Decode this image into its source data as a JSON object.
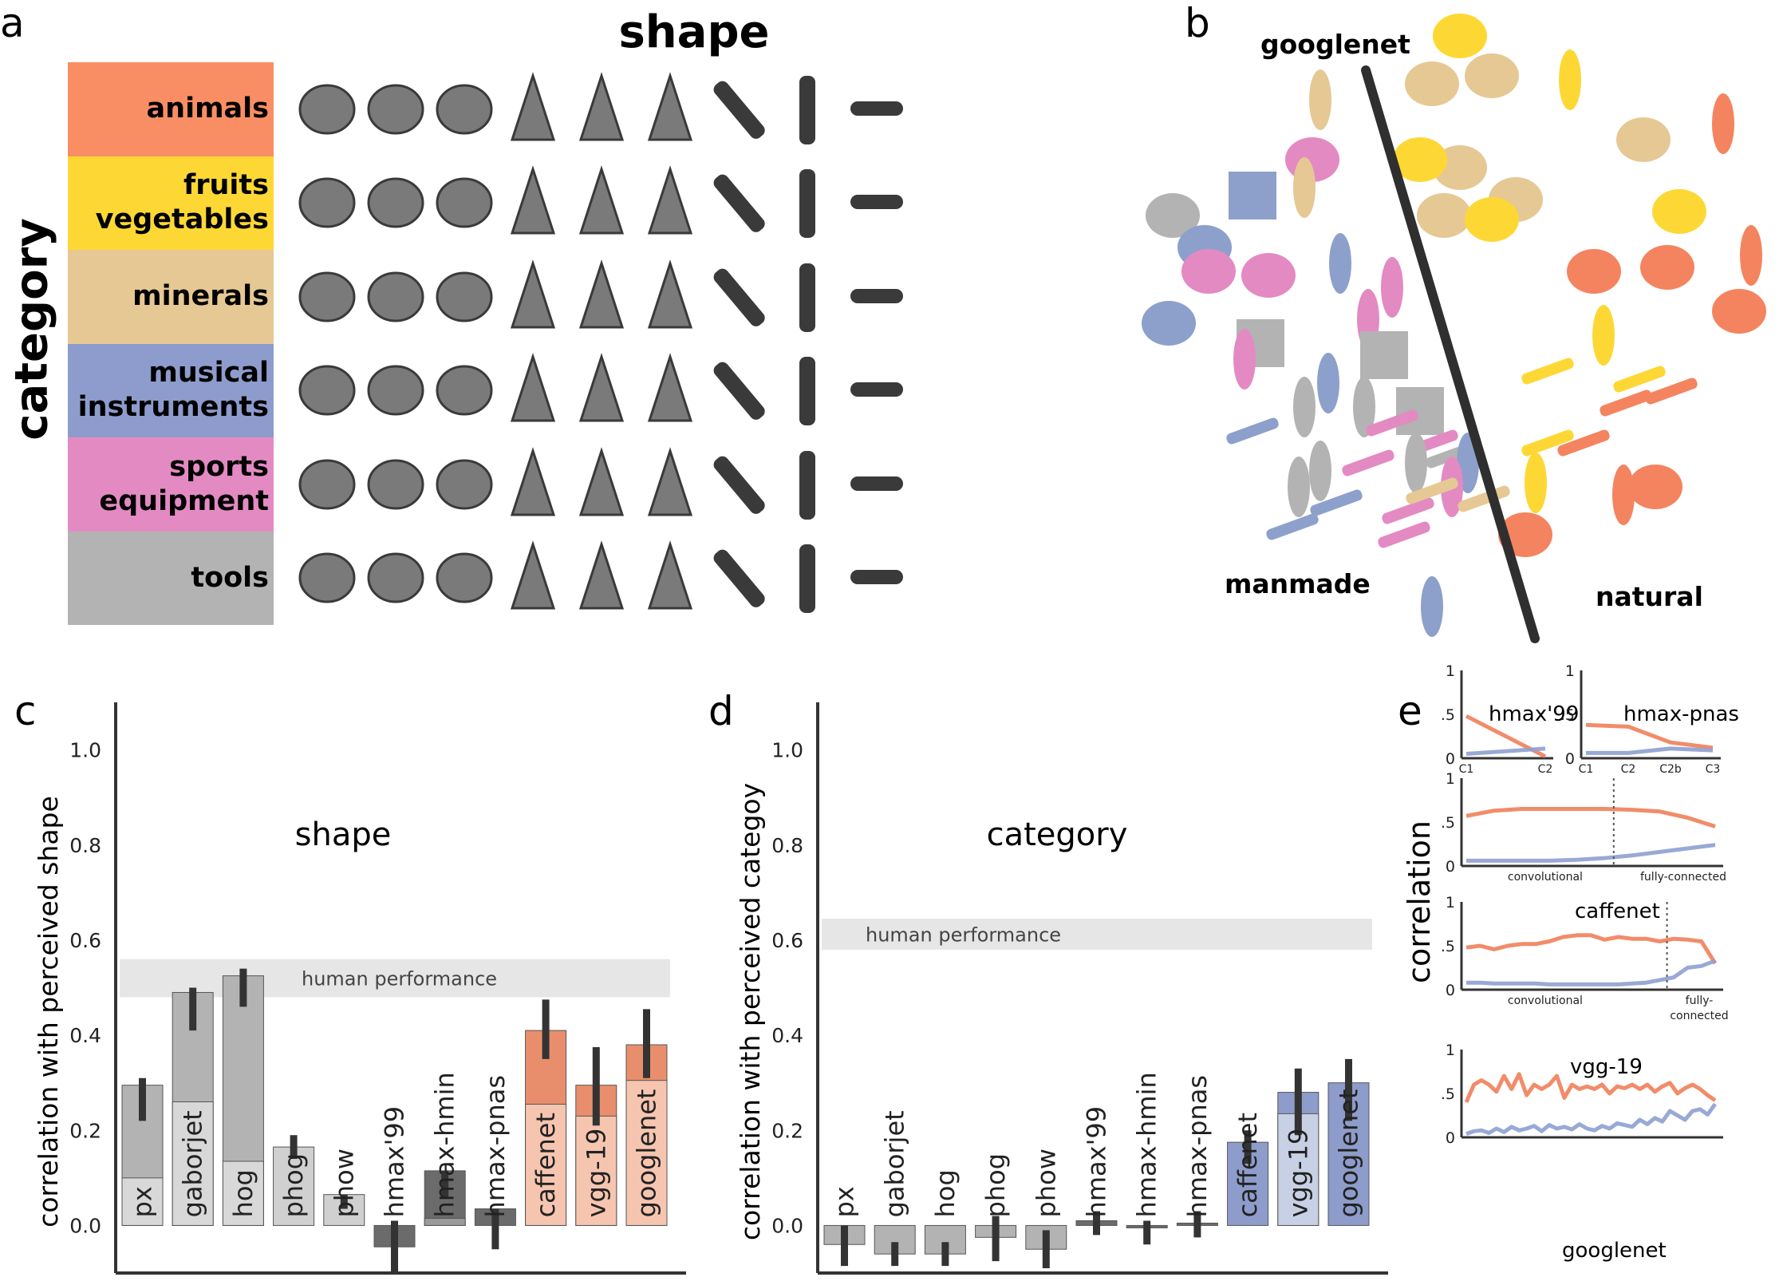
{
  "panels": {
    "a": "a",
    "b": "b",
    "c": "c",
    "d": "d",
    "e": "e"
  },
  "grid": {
    "title": "shape",
    "ylabel": "category",
    "categories": [
      {
        "lines": [
          "animals"
        ],
        "color": "#f98e64"
      },
      {
        "lines": [
          "fruits",
          "vegetables"
        ],
        "color": "#fdd835"
      },
      {
        "lines": [
          "minerals"
        ],
        "color": "#e6c894"
      },
      {
        "lines": [
          "musical",
          "instruments"
        ],
        "color": "#8d9ccc"
      },
      {
        "lines": [
          "sports",
          "equipment"
        ],
        "color": "#e38ac3"
      },
      {
        "lines": [
          "tools"
        ],
        "color": "#b3b3b3"
      }
    ],
    "object_icons": [
      "butterfly-icon",
      "snake-icon",
      "fish-icon",
      "goose-icon",
      "rabbit-icon",
      "owl-icon",
      "squid-icon",
      "centipede-icon",
      "slug-icon"
    ]
  },
  "panel_b": {
    "model_label": "googlenet",
    "left_label": "manmade",
    "right_label": "natural"
  },
  "colors": {
    "natural": "#f4845f",
    "manmade": "#8da0cb",
    "gray_dark": "#9e9e9e",
    "gray_light": "#dcdcdc",
    "err": "#333333"
  },
  "chart_data": [
    {
      "id": "c",
      "type": "bar",
      "title": "shape",
      "ylabel": "correlation with perceived shape",
      "ylim": [
        -0.1,
        1.1
      ],
      "yticks": [
        "0.0",
        "0.2",
        "0.4",
        "0.6",
        "0.8",
        "1.0"
      ],
      "human_performance": {
        "label": "human performance",
        "low": 0.48,
        "high": 0.56
      },
      "categories": [
        "px",
        "gaborjet",
        "hog",
        "phog",
        "phow",
        "hmax'99",
        "hmax-hmin",
        "hmax-pnas",
        "caffenet",
        "vgg-19",
        "googlenet"
      ],
      "values": [
        0.295,
        0.49,
        0.525,
        0.165,
        0.065,
        -0.045,
        0.115,
        0.035,
        0.41,
        0.295,
        0.38
      ],
      "inner_values": [
        0.1,
        0.26,
        0.135,
        0.165,
        0.065,
        -0.045,
        0.015,
        0.035,
        0.255,
        0.23,
        0.305
      ],
      "error_low": [
        0.22,
        0.41,
        0.46,
        0.14,
        0.035,
        -0.1,
        0.06,
        -0.05,
        0.35,
        0.21,
        0.31
      ],
      "error_high": [
        0.31,
        0.5,
        0.54,
        0.19,
        0.065,
        0.01,
        0.115,
        0.035,
        0.475,
        0.375,
        0.455
      ],
      "groups": [
        "gray",
        "gray",
        "gray",
        "lightgray",
        "lightgray",
        "darkgray",
        "darkgray",
        "darkgray",
        "orange",
        "orange",
        "orange"
      ]
    },
    {
      "id": "d",
      "type": "bar",
      "title": "category",
      "ylabel": "correlation with perceived categoy",
      "ylim": [
        -0.1,
        1.1
      ],
      "yticks": [
        "0.0",
        "0.2",
        "0.4",
        "0.6",
        "0.8",
        "1.0"
      ],
      "human_performance": {
        "label": "human performance",
        "low": 0.58,
        "high": 0.645
      },
      "categories": [
        "px",
        "gaborjet",
        "hog",
        "phog",
        "phow",
        "hmax'99",
        "hmax-hmin",
        "hmax-pnas",
        "caffenet",
        "vgg-19",
        "googlenet"
      ],
      "values": [
        -0.04,
        -0.06,
        -0.06,
        -0.025,
        -0.05,
        0.01,
        0.0,
        0.005,
        0.175,
        0.28,
        0.3
      ],
      "inner_values": [
        -0.04,
        -0.06,
        -0.06,
        -0.025,
        -0.05,
        0.01,
        0.0,
        0.005,
        0.175,
        0.235,
        0.3
      ],
      "error_low": [
        -0.085,
        -0.085,
        -0.085,
        -0.075,
        -0.09,
        -0.02,
        -0.04,
        -0.025,
        0.13,
        0.19,
        0.22
      ],
      "error_high": [
        0.0,
        -0.035,
        -0.035,
        0.02,
        -0.01,
        0.03,
        0.01,
        0.03,
        0.2,
        0.33,
        0.35
      ],
      "groups": [
        "gray",
        "gray",
        "gray",
        "gray",
        "gray",
        "darkgray",
        "darkgray",
        "darkgray",
        "blue",
        "blue",
        "blue"
      ]
    },
    {
      "id": "e1",
      "type": "line",
      "title": "hmax'99",
      "x": [
        "C1",
        "C2"
      ],
      "ylim": [
        0,
        1
      ],
      "yticks": [
        "0",
        ".5",
        "1"
      ],
      "series": [
        {
          "name": "shape",
          "values": [
            0.48,
            0.02
          ]
        },
        {
          "name": "category",
          "values": [
            0.05,
            0.11
          ]
        }
      ]
    },
    {
      "id": "e2",
      "type": "line",
      "title": "hmax-pnas",
      "x": [
        "C1",
        "C2",
        "C2b",
        "C3"
      ],
      "ylim": [
        0,
        1
      ],
      "yticks": [
        "0",
        ".5",
        "1"
      ],
      "series": [
        {
          "name": "shape",
          "values": [
            0.38,
            0.36,
            0.18,
            0.12
          ]
        },
        {
          "name": "category",
          "values": [
            0.06,
            0.06,
            0.11,
            0.09
          ]
        }
      ]
    },
    {
      "id": "e3",
      "type": "line",
      "title": "caffenet",
      "xlabel_left": "convolutional",
      "xlabel_right": "fully-connected",
      "ylim": [
        0,
        1
      ],
      "yticks": [
        "0",
        ".5",
        "1"
      ],
      "series": [
        {
          "name": "shape",
          "values": [
            0.57,
            0.63,
            0.65,
            0.65,
            0.65,
            0.65,
            0.64,
            0.62,
            0.55,
            0.45
          ]
        },
        {
          "name": "category",
          "values": [
            0.06,
            0.06,
            0.06,
            0.06,
            0.07,
            0.09,
            0.12,
            0.16,
            0.2,
            0.24
          ]
        }
      ]
    },
    {
      "id": "e4",
      "type": "line",
      "title": "vgg-19",
      "xlabel_left": "convolutional",
      "xlabel_right": "fully-\nconnected",
      "ylim": [
        0,
        1
      ],
      "yticks": [
        "0",
        ".5",
        "1"
      ],
      "series": [
        {
          "name": "shape",
          "values": [
            0.48,
            0.5,
            0.46,
            0.5,
            0.52,
            0.52,
            0.55,
            0.6,
            0.62,
            0.62,
            0.57,
            0.6,
            0.58,
            0.58,
            0.55,
            0.58,
            0.57,
            0.55,
            0.3
          ]
        },
        {
          "name": "category",
          "values": [
            0.08,
            0.08,
            0.07,
            0.07,
            0.07,
            0.07,
            0.06,
            0.06,
            0.06,
            0.06,
            0.06,
            0.06,
            0.07,
            0.08,
            0.11,
            0.14,
            0.25,
            0.27,
            0.33
          ]
        }
      ]
    },
    {
      "id": "e5",
      "type": "line",
      "title": "googlenet",
      "ylim": [
        0,
        1
      ],
      "yticks": [
        "0",
        ".5",
        "1"
      ],
      "series": [
        {
          "name": "shape",
          "values": [
            0.4,
            0.6,
            0.65,
            0.6,
            0.52,
            0.7,
            0.55,
            0.72,
            0.48,
            0.6,
            0.55,
            0.6,
            0.7,
            0.45,
            0.6,
            0.55,
            0.58,
            0.55,
            0.6,
            0.5,
            0.58,
            0.56,
            0.6,
            0.55,
            0.6,
            0.52,
            0.58,
            0.62,
            0.5,
            0.56,
            0.6,
            0.55,
            0.48,
            0.42
          ]
        },
        {
          "name": "category",
          "values": [
            0.04,
            0.07,
            0.08,
            0.05,
            0.1,
            0.06,
            0.12,
            0.08,
            0.1,
            0.13,
            0.07,
            0.14,
            0.1,
            0.12,
            0.09,
            0.15,
            0.1,
            0.08,
            0.13,
            0.1,
            0.16,
            0.14,
            0.12,
            0.2,
            0.15,
            0.22,
            0.18,
            0.3,
            0.25,
            0.2,
            0.3,
            0.32,
            0.26,
            0.38
          ]
        }
      ]
    }
  ],
  "panel_e_ylabel": "correlation"
}
